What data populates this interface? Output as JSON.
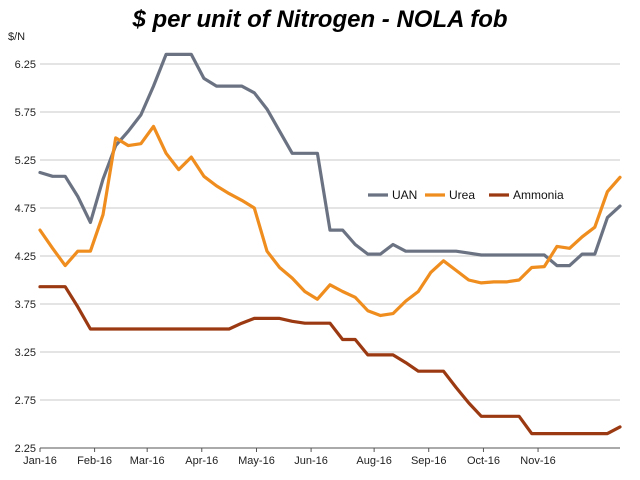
{
  "chart_data": {
    "type": "line",
    "title": "$ per unit of Nitrogen - NOLA fob",
    "ylabel": "$/N",
    "xlabel": "",
    "ylim": [
      2.25,
      6.5
    ],
    "yticks": [
      2.25,
      2.75,
      3.25,
      3.75,
      4.25,
      4.75,
      5.25,
      5.75,
      6.25
    ],
    "xlim": [
      0,
      46
    ],
    "xticks": [
      {
        "label": "Jan-16",
        "x": 0
      },
      {
        "label": "Feb-16",
        "x": 4.33
      },
      {
        "label": "Mar-16",
        "x": 8.5
      },
      {
        "label": "Apr-16",
        "x": 12.83
      },
      {
        "label": "May-16",
        "x": 17.17
      },
      {
        "label": "Jun-16",
        "x": 21.5
      },
      {
        "label": "Aug-16",
        "x": 26.5
      },
      {
        "label": "Sep-16",
        "x": 30.83
      },
      {
        "label": "Oct-16",
        "x": 35.17
      },
      {
        "label": "Nov-16",
        "x": 39.5
      }
    ],
    "grid": true,
    "legend": "right",
    "series": [
      {
        "name": "UAN",
        "color": "#6b7383",
        "points": [
          [
            0,
            5.12
          ],
          [
            1,
            5.08
          ],
          [
            2,
            5.08
          ],
          [
            3,
            4.87
          ],
          [
            4,
            4.6
          ],
          [
            5,
            5.05
          ],
          [
            6,
            5.4
          ],
          [
            7,
            5.55
          ],
          [
            8,
            5.72
          ],
          [
            9,
            6.02
          ],
          [
            10,
            6.35
          ],
          [
            11,
            6.35
          ],
          [
            12,
            6.35
          ],
          [
            13,
            6.1
          ],
          [
            14,
            6.02
          ],
          [
            15,
            6.02
          ],
          [
            16,
            6.02
          ],
          [
            17,
            5.95
          ],
          [
            18,
            5.78
          ],
          [
            19,
            5.55
          ],
          [
            20,
            5.32
          ],
          [
            21,
            5.32
          ],
          [
            22,
            5.32
          ],
          [
            23,
            4.52
          ],
          [
            24,
            4.52
          ],
          [
            25,
            4.37
          ],
          [
            26,
            4.27
          ],
          [
            27,
            4.27
          ],
          [
            28,
            4.37
          ],
          [
            29,
            4.3
          ],
          [
            30,
            4.3
          ],
          [
            31,
            4.3
          ],
          [
            32,
            4.3
          ],
          [
            33,
            4.3
          ],
          [
            34,
            4.28
          ],
          [
            35,
            4.26
          ],
          [
            36,
            4.26
          ],
          [
            37,
            4.26
          ],
          [
            38,
            4.26
          ],
          [
            39,
            4.26
          ],
          [
            40,
            4.26
          ],
          [
            41,
            4.15
          ],
          [
            42,
            4.15
          ],
          [
            43,
            4.27
          ],
          [
            44,
            4.27
          ],
          [
            45,
            4.65
          ],
          [
            46,
            4.77
          ]
        ]
      },
      {
        "name": "Urea",
        "color": "#ef8d1f",
        "points": [
          [
            0,
            4.52
          ],
          [
            1,
            4.33
          ],
          [
            2,
            4.15
          ],
          [
            3,
            4.3
          ],
          [
            4,
            4.3
          ],
          [
            5,
            4.68
          ],
          [
            6,
            5.48
          ],
          [
            7,
            5.4
          ],
          [
            8,
            5.42
          ],
          [
            9,
            5.6
          ],
          [
            10,
            5.32
          ],
          [
            11,
            5.15
          ],
          [
            12,
            5.28
          ],
          [
            13,
            5.08
          ],
          [
            14,
            4.98
          ],
          [
            15,
            4.9
          ],
          [
            16,
            4.83
          ],
          [
            17,
            4.75
          ],
          [
            18,
            4.3
          ],
          [
            19,
            4.13
          ],
          [
            20,
            4.02
          ],
          [
            21,
            3.88
          ],
          [
            22,
            3.8
          ],
          [
            23,
            3.95
          ],
          [
            24,
            3.88
          ],
          [
            25,
            3.82
          ],
          [
            26,
            3.68
          ],
          [
            27,
            3.63
          ],
          [
            28,
            3.65
          ],
          [
            29,
            3.78
          ],
          [
            30,
            3.88
          ],
          [
            31,
            4.08
          ],
          [
            32,
            4.2
          ],
          [
            33,
            4.1
          ],
          [
            34,
            4.0
          ],
          [
            35,
            3.97
          ],
          [
            36,
            3.98
          ],
          [
            37,
            3.98
          ],
          [
            38,
            4.0
          ],
          [
            39,
            4.13
          ],
          [
            40,
            4.14
          ],
          [
            41,
            4.35
          ],
          [
            42,
            4.33
          ],
          [
            43,
            4.45
          ],
          [
            44,
            4.55
          ],
          [
            45,
            4.92
          ],
          [
            46,
            5.07
          ]
        ]
      },
      {
        "name": "Ammonia",
        "color": "#9b3a12",
        "points": [
          [
            0,
            3.93
          ],
          [
            1,
            3.93
          ],
          [
            2,
            3.93
          ],
          [
            3,
            3.72
          ],
          [
            4,
            3.49
          ],
          [
            5,
            3.49
          ],
          [
            6,
            3.49
          ],
          [
            7,
            3.49
          ],
          [
            8,
            3.49
          ],
          [
            9,
            3.49
          ],
          [
            10,
            3.49
          ],
          [
            11,
            3.49
          ],
          [
            12,
            3.49
          ],
          [
            13,
            3.49
          ],
          [
            14,
            3.49
          ],
          [
            15,
            3.49
          ],
          [
            16,
            3.55
          ],
          [
            17,
            3.6
          ],
          [
            18,
            3.6
          ],
          [
            19,
            3.6
          ],
          [
            20,
            3.57
          ],
          [
            21,
            3.55
          ],
          [
            22,
            3.55
          ],
          [
            23,
            3.55
          ],
          [
            24,
            3.38
          ],
          [
            25,
            3.38
          ],
          [
            26,
            3.22
          ],
          [
            27,
            3.22
          ],
          [
            28,
            3.22
          ],
          [
            29,
            3.14
          ],
          [
            30,
            3.05
          ],
          [
            31,
            3.05
          ],
          [
            32,
            3.05
          ],
          [
            33,
            2.88
          ],
          [
            34,
            2.72
          ],
          [
            35,
            2.58
          ],
          [
            36,
            2.58
          ],
          [
            37,
            2.58
          ],
          [
            38,
            2.58
          ],
          [
            39,
            2.4
          ],
          [
            40,
            2.4
          ],
          [
            41,
            2.4
          ],
          [
            42,
            2.4
          ],
          [
            43,
            2.4
          ],
          [
            44,
            2.4
          ],
          [
            45,
            2.4
          ],
          [
            46,
            2.47
          ]
        ]
      }
    ]
  }
}
